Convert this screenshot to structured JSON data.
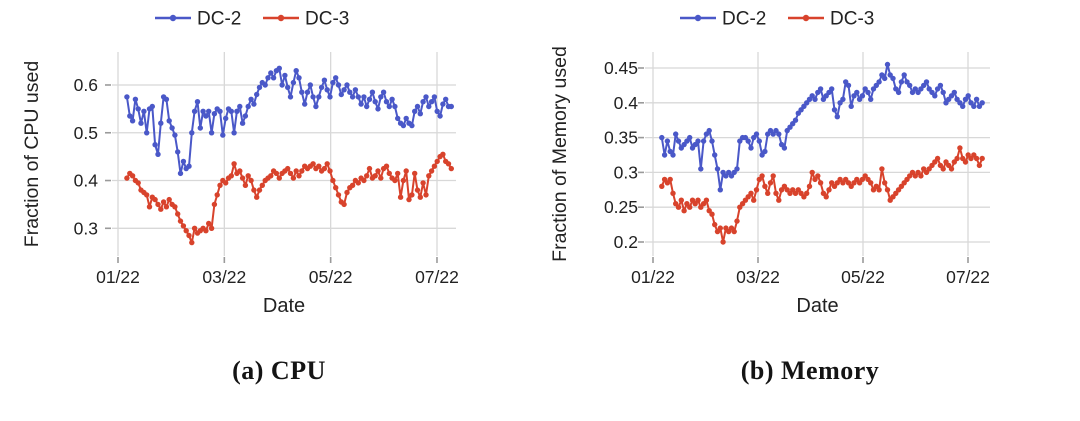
{
  "colors": {
    "dc2": "#4a58c8",
    "dc3": "#d8432c",
    "grid": "#d8d8d8",
    "tick": "#9a9a9a",
    "text": "#222222"
  },
  "chart_data": [
    {
      "type": "line",
      "id": "cpu",
      "title": "(a) CPU",
      "xlabel": "Date",
      "ylabel": "Fraction of CPU used",
      "x_tick_labels": [
        "01/22",
        "03/22",
        "05/22",
        "07/22"
      ],
      "y_ticks": [
        0.3,
        0.4,
        0.5,
        0.6
      ],
      "ylim": [
        0.26,
        0.66
      ],
      "grid": true,
      "markers": true,
      "legend_position": "top-center",
      "series": [
        {
          "name": "DC-2",
          "color_key": "dc2",
          "color": "#4a58c8",
          "t_start": 0.028,
          "t_end": 1.045,
          "values": [
            0.575,
            0.535,
            0.525,
            0.57,
            0.55,
            0.52,
            0.545,
            0.5,
            0.55,
            0.555,
            0.475,
            0.455,
            0.52,
            0.575,
            0.57,
            0.525,
            0.51,
            0.495,
            0.46,
            0.415,
            0.44,
            0.425,
            0.43,
            0.5,
            0.545,
            0.565,
            0.51,
            0.545,
            0.535,
            0.545,
            0.5,
            0.54,
            0.55,
            0.545,
            0.495,
            0.53,
            0.55,
            0.545,
            0.5,
            0.545,
            0.555,
            0.52,
            0.535,
            0.555,
            0.57,
            0.56,
            0.58,
            0.595,
            0.605,
            0.6,
            0.615,
            0.625,
            0.615,
            0.63,
            0.635,
            0.6,
            0.62,
            0.595,
            0.575,
            0.605,
            0.63,
            0.615,
            0.585,
            0.56,
            0.585,
            0.6,
            0.575,
            0.555,
            0.575,
            0.595,
            0.61,
            0.59,
            0.575,
            0.605,
            0.615,
            0.6,
            0.58,
            0.59,
            0.6,
            0.585,
            0.575,
            0.59,
            0.575,
            0.56,
            0.575,
            0.555,
            0.57,
            0.585,
            0.565,
            0.55,
            0.575,
            0.585,
            0.565,
            0.555,
            0.57,
            0.555,
            0.53,
            0.52,
            0.515,
            0.53,
            0.52,
            0.515,
            0.545,
            0.555,
            0.54,
            0.565,
            0.575,
            0.555,
            0.565,
            0.575,
            0.545,
            0.535,
            0.56,
            0.57,
            0.555,
            0.555
          ]
        },
        {
          "name": "DC-3",
          "color_key": "dc3",
          "color": "#d8432c",
          "t_start": 0.028,
          "t_end": 1.045,
          "values": [
            0.405,
            0.415,
            0.41,
            0.4,
            0.395,
            0.38,
            0.375,
            0.37,
            0.345,
            0.365,
            0.36,
            0.35,
            0.34,
            0.355,
            0.345,
            0.36,
            0.35,
            0.345,
            0.33,
            0.315,
            0.305,
            0.295,
            0.285,
            0.27,
            0.3,
            0.29,
            0.295,
            0.3,
            0.295,
            0.31,
            0.3,
            0.35,
            0.37,
            0.39,
            0.4,
            0.395,
            0.405,
            0.41,
            0.435,
            0.415,
            0.42,
            0.405,
            0.39,
            0.41,
            0.4,
            0.38,
            0.365,
            0.38,
            0.39,
            0.4,
            0.405,
            0.41,
            0.42,
            0.415,
            0.405,
            0.415,
            0.42,
            0.425,
            0.415,
            0.405,
            0.42,
            0.41,
            0.42,
            0.43,
            0.425,
            0.43,
            0.435,
            0.425,
            0.43,
            0.42,
            0.425,
            0.435,
            0.42,
            0.4,
            0.385,
            0.37,
            0.355,
            0.35,
            0.375,
            0.385,
            0.39,
            0.4,
            0.395,
            0.405,
            0.4,
            0.41,
            0.425,
            0.405,
            0.41,
            0.42,
            0.405,
            0.425,
            0.43,
            0.415,
            0.405,
            0.4,
            0.415,
            0.365,
            0.4,
            0.42,
            0.36,
            0.37,
            0.415,
            0.38,
            0.365,
            0.395,
            0.37,
            0.41,
            0.42,
            0.43,
            0.44,
            0.45,
            0.455,
            0.44,
            0.435,
            0.425
          ]
        }
      ]
    },
    {
      "type": "line",
      "id": "memory",
      "title": "(b) Memory",
      "xlabel": "Date",
      "ylabel": "Fraction of Memory used",
      "x_tick_labels": [
        "01/22",
        "03/22",
        "05/22",
        "07/22"
      ],
      "y_ticks": [
        0.2,
        0.25,
        0.3,
        0.35,
        0.4,
        0.45
      ],
      "ylim": [
        0.18,
        0.47
      ],
      "grid": true,
      "markers": true,
      "legend_position": "top-center",
      "series": [
        {
          "name": "DC-2",
          "color_key": "dc2",
          "color": "#4a58c8",
          "t_start": 0.028,
          "t_end": 1.045,
          "values": [
            0.35,
            0.325,
            0.345,
            0.33,
            0.325,
            0.355,
            0.345,
            0.335,
            0.34,
            0.345,
            0.35,
            0.335,
            0.34,
            0.345,
            0.305,
            0.345,
            0.355,
            0.36,
            0.345,
            0.325,
            0.305,
            0.275,
            0.3,
            0.295,
            0.3,
            0.295,
            0.3,
            0.305,
            0.345,
            0.35,
            0.35,
            0.345,
            0.335,
            0.35,
            0.355,
            0.345,
            0.325,
            0.33,
            0.355,
            0.36,
            0.355,
            0.36,
            0.355,
            0.34,
            0.335,
            0.36,
            0.365,
            0.37,
            0.375,
            0.385,
            0.39,
            0.395,
            0.4,
            0.405,
            0.41,
            0.405,
            0.415,
            0.42,
            0.405,
            0.41,
            0.415,
            0.42,
            0.39,
            0.38,
            0.4,
            0.405,
            0.43,
            0.425,
            0.395,
            0.41,
            0.415,
            0.405,
            0.41,
            0.42,
            0.415,
            0.405,
            0.42,
            0.425,
            0.43,
            0.44,
            0.435,
            0.455,
            0.44,
            0.435,
            0.42,
            0.415,
            0.43,
            0.44,
            0.43,
            0.425,
            0.415,
            0.42,
            0.415,
            0.42,
            0.425,
            0.43,
            0.42,
            0.415,
            0.41,
            0.42,
            0.425,
            0.415,
            0.4,
            0.405,
            0.41,
            0.415,
            0.405,
            0.4,
            0.395,
            0.405,
            0.41,
            0.4,
            0.395,
            0.405,
            0.395,
            0.4
          ]
        },
        {
          "name": "DC-3",
          "color_key": "dc3",
          "color": "#d8432c",
          "t_start": 0.028,
          "t_end": 1.045,
          "values": [
            0.28,
            0.29,
            0.285,
            0.29,
            0.27,
            0.255,
            0.25,
            0.26,
            0.245,
            0.255,
            0.25,
            0.26,
            0.255,
            0.26,
            0.25,
            0.255,
            0.26,
            0.245,
            0.24,
            0.225,
            0.215,
            0.22,
            0.2,
            0.22,
            0.215,
            0.22,
            0.215,
            0.23,
            0.25,
            0.255,
            0.26,
            0.265,
            0.27,
            0.26,
            0.275,
            0.29,
            0.295,
            0.28,
            0.27,
            0.285,
            0.295,
            0.27,
            0.26,
            0.275,
            0.28,
            0.275,
            0.27,
            0.275,
            0.27,
            0.275,
            0.27,
            0.265,
            0.27,
            0.28,
            0.3,
            0.29,
            0.295,
            0.285,
            0.27,
            0.265,
            0.275,
            0.285,
            0.28,
            0.285,
            0.29,
            0.285,
            0.29,
            0.285,
            0.28,
            0.285,
            0.29,
            0.285,
            0.29,
            0.295,
            0.29,
            0.285,
            0.275,
            0.28,
            0.275,
            0.305,
            0.285,
            0.275,
            0.26,
            0.265,
            0.27,
            0.275,
            0.28,
            0.285,
            0.29,
            0.295,
            0.3,
            0.295,
            0.3,
            0.295,
            0.305,
            0.3,
            0.305,
            0.31,
            0.315,
            0.32,
            0.31,
            0.305,
            0.315,
            0.31,
            0.305,
            0.315,
            0.32,
            0.335,
            0.32,
            0.315,
            0.325,
            0.32,
            0.325,
            0.32,
            0.31,
            0.32
          ]
        }
      ]
    }
  ]
}
